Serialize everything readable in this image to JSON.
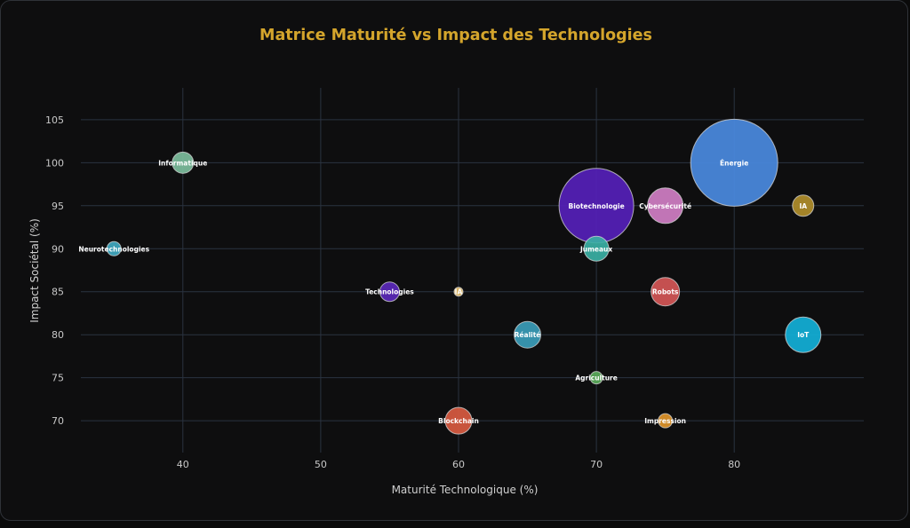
{
  "chart_data": {
    "type": "scatter",
    "subtype": "bubble",
    "title": "Matrice Maturité vs Impact des Technologies",
    "xlabel": "Maturité Technologique (%)",
    "ylabel": "Impact Sociétal (%)",
    "xlim": [
      32.6,
      89.4
    ],
    "ylim": [
      66.3,
      108.7
    ],
    "xticks": [
      40,
      50,
      60,
      70,
      80
    ],
    "yticks": [
      70,
      75,
      80,
      85,
      90,
      95,
      100,
      105
    ],
    "grid": true,
    "legend": "none",
    "points": [
      {
        "label": "Énergie",
        "x": 80,
        "y": 100,
        "size": 49,
        "color": "#4a8ae0"
      },
      {
        "label": "Biotechnologie",
        "x": 70,
        "y": 95,
        "size": 42,
        "color": "#5520b8"
      },
      {
        "label": "Cybersécurité",
        "x": 75,
        "y": 95,
        "size": 20,
        "color": "#d07ec4"
      },
      {
        "label": "IA",
        "x": 85,
        "y": 95,
        "size": 12,
        "color": "#b08d2a"
      },
      {
        "label": "Informatique",
        "x": 40,
        "y": 100,
        "size": 12,
        "color": "#7cbd9c"
      },
      {
        "label": "Neurotechnologies",
        "x": 35,
        "y": 90,
        "size": 8,
        "color": "#3fa8c0"
      },
      {
        "label": "Jumeaux",
        "x": 70,
        "y": 90,
        "size": 14,
        "color": "#3ab0a4"
      },
      {
        "label": "Technologies",
        "x": 55,
        "y": 85,
        "size": 11,
        "color": "#5a28b8"
      },
      {
        "label": "IA",
        "x": 60,
        "y": 85,
        "size": 5,
        "color": "#e8c06a"
      },
      {
        "label": "Robots",
        "x": 75,
        "y": 85,
        "size": 16,
        "color": "#d45656"
      },
      {
        "label": "Réalité",
        "x": 65,
        "y": 80,
        "size": 15,
        "color": "#3a9cb8"
      },
      {
        "label": "IoT",
        "x": 85,
        "y": 80,
        "size": 20,
        "color": "#12b0d8"
      },
      {
        "label": "Agriculture",
        "x": 70,
        "y": 75,
        "size": 7,
        "color": "#5aaa5a"
      },
      {
        "label": "Blockchain",
        "x": 60,
        "y": 70,
        "size": 15,
        "color": "#d85a40"
      },
      {
        "label": "Impression",
        "x": 75,
        "y": 70,
        "size": 8,
        "color": "#e0952a"
      }
    ]
  },
  "colors": {
    "title": "#d4a52c",
    "grid": "#2a3340",
    "background": "#0e0e0f"
  }
}
